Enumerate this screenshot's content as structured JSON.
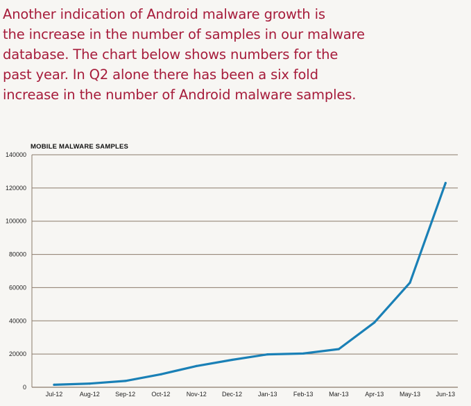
{
  "intro": {
    "lines": [
      "Another indication of Android malware growth is",
      "the increase in the number of samples in our malware",
      "database. The chart below shows numbers for the",
      "past year. In Q2 alone there has been a six fold",
      "increase in the number of Android malware samples."
    ]
  },
  "colors": {
    "intro_text": "#a61b3a",
    "line": "#1a80b6",
    "grid": "#8a7a6a",
    "background": "#f7f6f3"
  },
  "chart_data": {
    "type": "line",
    "title": "MOBILE MALWARE SAMPLES",
    "xlabel": "",
    "ylabel": "",
    "categories": [
      "Jul-12",
      "Aug-12",
      "Sep-12",
      "Oct-12",
      "Nov-12",
      "Dec-12",
      "Jan-13",
      "Feb-13",
      "Mar-13",
      "Apr-13",
      "May-13",
      "Jun-13"
    ],
    "series": [
      {
        "values": [
          1500,
          2200,
          3800,
          7800,
          12800,
          16500,
          19800,
          20300,
          23000,
          39000,
          63000,
          123000
        ]
      }
    ],
    "ylim": [
      0,
      140000
    ],
    "yticks": [
      0,
      20000,
      40000,
      60000,
      80000,
      100000,
      120000,
      140000
    ],
    "ytick_labels": [
      "0",
      "20000",
      "40000",
      "60000",
      "80000",
      "100000",
      "120000",
      "140000"
    ],
    "grid": true,
    "legend": "none"
  }
}
